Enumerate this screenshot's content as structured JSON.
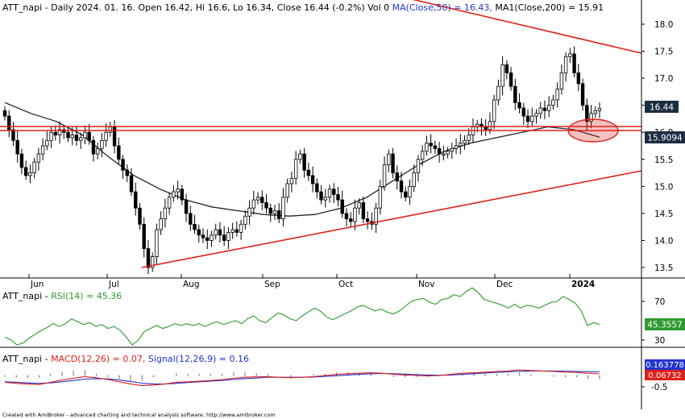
{
  "header": {
    "symbol": "ATT_napi",
    "main_title": "ATT_napi - Daily 2024. 01. 16. Open 16.42, Hi 16.6, Lo 16.34, Close 16.44 (-0.2%) Vol 0",
    "ma50_label": "MA(Close,50) = 16.43,",
    "ma200_label": "MA1(Close,200) = 15.91",
    "rsi_prefix": "ATT_napi - ",
    "rsi_label": "RSI(14) = 45.36",
    "macd_prefix": "ATT_napi - ",
    "macd_label": "MACD(12,26) = 0.07,",
    "signal_label": "Signal(12,26,9) = 0.16",
    "footer": "Created with AmiBroker - advanced charting and technical analysis software. http://www.amibroker.com"
  },
  "colors": {
    "background": "#ffffff",
    "candle": "#000000",
    "ma200": "#1c2430",
    "trendline": "#e0201a",
    "rsi": "#2e9a2e",
    "macd": "#e0201a",
    "signal": "#2233cc",
    "histogram": "#3a3a5a",
    "price_badge": "#1c2e40",
    "rsi_badge": "#2e9a2e",
    "signal_badge": "#2233cc",
    "macd_badge": "#e0201a"
  },
  "chart_data": [
    {
      "type": "candlestick",
      "title": "ATT_napi - Daily",
      "date": "2024. 01. 16.",
      "ohlc_last": {
        "open": 16.42,
        "high": 16.6,
        "low": 16.34,
        "close": 16.44,
        "change_pct": -0.2,
        "volume": 0
      },
      "months": [
        "Jun",
        "Jul",
        "Aug",
        "Sep",
        "Oct",
        "Nov",
        "Dec",
        "2024"
      ],
      "yticks": [
        13.5,
        14.0,
        14.5,
        15.0,
        15.5,
        16.0,
        16.5,
        17.0,
        17.5,
        18.0
      ],
      "ylim": [
        13.35,
        18.25
      ],
      "grid": false,
      "price_badges": [
        "16.44",
        "15.9094"
      ],
      "ma50_last": 16.43,
      "ma200_last": 15.91,
      "close_series": [
        16.3,
        16.05,
        15.85,
        15.6,
        15.35,
        15.2,
        15.25,
        15.45,
        15.6,
        15.75,
        15.85,
        16.0,
        15.95,
        16.05,
        16.0,
        15.9,
        15.95,
        15.85,
        15.9,
        16.0,
        15.85,
        15.6,
        15.7,
        15.85,
        16.0,
        16.1,
        15.75,
        15.5,
        15.3,
        15.2,
        14.9,
        14.6,
        14.3,
        13.85,
        13.5,
        13.7,
        14.2,
        14.4,
        14.6,
        14.8,
        14.9,
        14.95,
        14.75,
        14.5,
        14.3,
        14.2,
        14.1,
        14.05,
        14.0,
        14.1,
        14.2,
        14.1,
        14.0,
        14.15,
        14.2,
        14.15,
        14.3,
        14.45,
        14.6,
        14.75,
        14.8,
        14.7,
        14.6,
        14.5,
        14.55,
        14.4,
        14.8,
        15.05,
        15.15,
        15.5,
        15.6,
        15.3,
        15.2,
        15.05,
        14.9,
        14.75,
        14.8,
        14.95,
        14.85,
        14.75,
        14.5,
        14.4,
        14.35,
        14.6,
        14.7,
        14.4,
        14.35,
        14.3,
        14.6,
        15.0,
        15.4,
        15.6,
        15.25,
        15.1,
        14.9,
        14.8,
        15.0,
        15.25,
        15.5,
        15.65,
        15.8,
        15.75,
        15.7,
        15.6,
        15.6,
        15.65,
        15.7,
        15.75,
        15.8,
        15.85,
        15.95,
        16.1,
        16.15,
        16.1,
        16.05,
        16.2,
        16.6,
        16.85,
        17.25,
        17.1,
        16.85,
        16.55,
        16.45,
        16.3,
        16.2,
        16.3,
        16.35,
        16.45,
        16.4,
        16.5,
        16.6,
        16.8,
        17.1,
        17.4,
        17.45,
        17.1,
        16.9,
        16.5,
        16.2,
        16.35,
        16.4,
        16.44
      ],
      "ma200_series": [
        16.55,
        16.35,
        16.2,
        15.95,
        15.55,
        15.2,
        14.95,
        14.75,
        14.62,
        14.55,
        14.48,
        14.45,
        14.48,
        14.6,
        14.8,
        15.1,
        15.4,
        15.65,
        15.8,
        15.9,
        16.0,
        16.1,
        16.05,
        15.91
      ],
      "trendlines": [
        {
          "from": [
            "2023-07",
            13.45
          ],
          "to": [
            "2024-01",
            15.15
          ],
          "label": ""
        },
        {
          "from": [
            "2023-12",
            18.1
          ],
          "to": [
            "2024-01",
            17.45
          ],
          "label": ""
        },
        {
          "horizontal": 16.1
        },
        {
          "horizontal": 16.0
        }
      ]
    },
    {
      "type": "line",
      "title": "RSI(14)",
      "last_value": 45.36,
      "badge": "45.3557",
      "yticks": [
        30,
        70
      ],
      "ylim": [
        15,
        88
      ],
      "values": [
        33,
        30,
        25,
        27,
        32,
        36,
        40,
        43,
        47,
        44,
        47,
        52,
        49,
        46,
        48,
        44,
        46,
        42,
        44,
        40,
        33,
        25,
        30,
        39,
        42,
        45,
        42,
        44,
        47,
        45,
        47,
        45,
        47,
        44,
        47,
        49,
        46,
        48,
        50,
        47,
        52,
        55,
        50,
        48,
        53,
        58,
        56,
        52,
        50,
        55,
        59,
        63,
        60,
        54,
        51,
        54,
        57,
        60,
        64,
        66,
        63,
        60,
        62,
        59,
        57,
        60,
        65,
        70,
        72,
        73,
        69,
        67,
        72,
        73,
        77,
        75,
        80,
        84,
        79,
        72,
        70,
        68,
        66,
        63,
        67,
        63,
        66,
        65,
        63,
        66,
        69,
        70,
        75,
        72,
        68,
        60,
        45,
        48,
        46
      ]
    },
    {
      "type": "line",
      "title": "MACD(12,26)",
      "yticks": [
        -0.5
      ],
      "ylim": [
        -0.6,
        0.3
      ],
      "badges": [
        "0.163778",
        "0.06732"
      ],
      "series": [
        {
          "name": "MACD(12,26)",
          "last_value": 0.07,
          "values": [
            -0.3,
            -0.35,
            -0.38,
            -0.4,
            -0.3,
            -0.2,
            -0.12,
            -0.05,
            -0.1,
            -0.18,
            -0.28,
            -0.38,
            -0.45,
            -0.42,
            -0.38,
            -0.3,
            -0.28,
            -0.25,
            -0.22,
            -0.18,
            -0.12,
            -0.08,
            -0.06,
            -0.05,
            -0.08,
            -0.1,
            -0.08,
            -0.05,
            0.0,
            0.05,
            0.08,
            0.1,
            0.12,
            0.1,
            0.05,
            0.02,
            0.0,
            -0.02,
            0.0,
            0.05,
            0.1,
            0.12,
            0.15,
            0.18,
            0.2,
            0.25,
            0.22,
            0.2,
            0.18,
            0.15,
            0.14,
            0.1,
            0.07
          ]
        },
        {
          "name": "Signal(12,26,9)",
          "last_value": 0.16,
          "values": [
            -0.28,
            -0.3,
            -0.33,
            -0.35,
            -0.33,
            -0.28,
            -0.22,
            -0.16,
            -0.14,
            -0.15,
            -0.2,
            -0.27,
            -0.34,
            -0.38,
            -0.38,
            -0.35,
            -0.31,
            -0.28,
            -0.25,
            -0.22,
            -0.18,
            -0.14,
            -0.11,
            -0.08,
            -0.08,
            -0.08,
            -0.08,
            -0.07,
            -0.04,
            -0.01,
            0.02,
            0.05,
            0.08,
            0.09,
            0.08,
            0.06,
            0.04,
            0.02,
            0.01,
            0.02,
            0.05,
            0.08,
            0.11,
            0.14,
            0.16,
            0.19,
            0.2,
            0.2,
            0.2,
            0.19,
            0.18,
            0.17,
            0.16
          ]
        }
      ]
    }
  ]
}
